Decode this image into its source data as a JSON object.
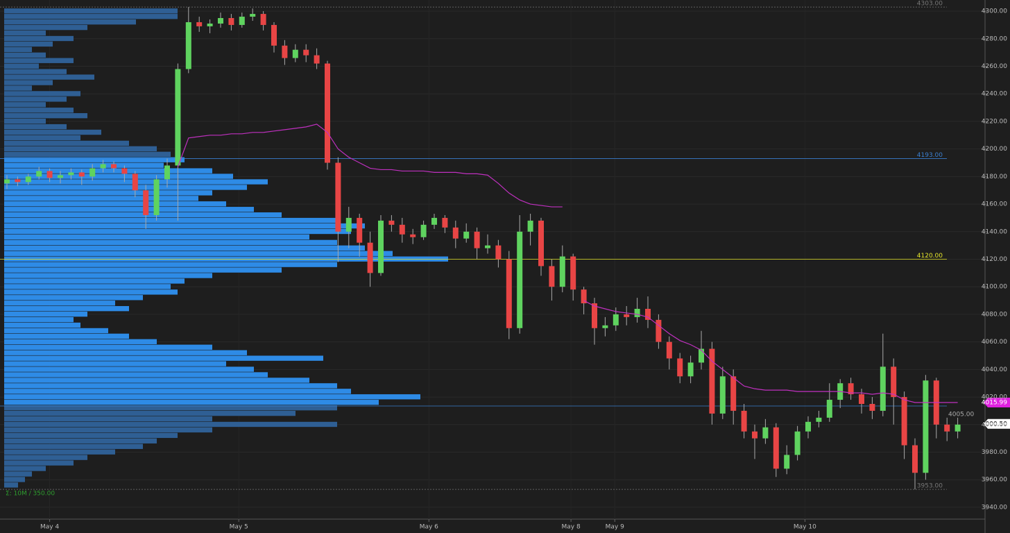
{
  "chart_data": {
    "type": "candlestick",
    "ylim": [
      3931.4,
      4308.1
    ],
    "yticks": [
      {
        "value": 4300,
        "label": "4300.00"
      },
      {
        "value": 4280,
        "label": "4280.00"
      },
      {
        "value": 4260,
        "label": "4260.00"
      },
      {
        "value": 4240,
        "label": "4240.00"
      },
      {
        "value": 4220,
        "label": "4220.00"
      },
      {
        "value": 4200,
        "label": "4200.00"
      },
      {
        "value": 4180,
        "label": "4180.00"
      },
      {
        "value": 4160,
        "label": "4160.00"
      },
      {
        "value": 4140,
        "label": "4140.00"
      },
      {
        "value": 4120,
        "label": "4120.00"
      },
      {
        "value": 4100,
        "label": "4100.00"
      },
      {
        "value": 4080,
        "label": "4080.00"
      },
      {
        "value": 4060,
        "label": "4060.00"
      },
      {
        "value": 4040,
        "label": "4040.00"
      },
      {
        "value": 4020,
        "label": "4020.00"
      },
      {
        "value": 4000,
        "label": "4000.00"
      },
      {
        "value": 3980,
        "label": "3980.00"
      },
      {
        "value": 3960,
        "label": "3960.00"
      },
      {
        "value": 3940,
        "label": "3940.00"
      }
    ],
    "xticks": [
      {
        "value": 4.0,
        "label": "May 4"
      },
      {
        "value": 21.7,
        "label": "May 5"
      },
      {
        "value": 39.5,
        "label": "May 6"
      },
      {
        "value": 52.8,
        "label": "May 8"
      },
      {
        "value": 56.9,
        "label": "May 9"
      },
      {
        "value": 74.7,
        "label": "May 10"
      }
    ],
    "up_color": "#5fd35f",
    "down_color": "#e84545",
    "candles": [
      [
        4175,
        4181,
        4171,
        4178
      ],
      [
        4178,
        4180,
        4173,
        4176
      ],
      [
        4176,
        4182,
        4174,
        4180
      ],
      [
        4180,
        4187,
        4178,
        4184
      ],
      [
        4184,
        4186,
        4176,
        4179
      ],
      [
        4179,
        4184,
        4175,
        4181
      ],
      [
        4181,
        4186,
        4178,
        4183
      ],
      [
        4183,
        4185,
        4174,
        4180
      ],
      [
        4180,
        4189,
        4177,
        4186
      ],
      [
        4186,
        4192,
        4183,
        4189
      ],
      [
        4189,
        4191,
        4183,
        4186
      ],
      [
        4186,
        4188,
        4176,
        4182
      ],
      [
        4182,
        4184,
        4165,
        4170
      ],
      [
        4170,
        4174,
        4142,
        4152
      ],
      [
        4152,
        4181,
        4148,
        4178
      ],
      [
        4178,
        4193,
        4172,
        4188
      ],
      [
        4188,
        4262,
        4148,
        4258
      ],
      [
        4258,
        4303,
        4255,
        4292
      ],
      [
        4292,
        4296,
        4285,
        4289
      ],
      [
        4289,
        4294,
        4284,
        4291
      ],
      [
        4291,
        4299,
        4288,
        4295
      ],
      [
        4295,
        4298,
        4286,
        4290
      ],
      [
        4290,
        4299,
        4288,
        4296
      ],
      [
        4296,
        4302,
        4293,
        4298
      ],
      [
        4298,
        4300,
        4286,
        4290
      ],
      [
        4290,
        4292,
        4270,
        4275
      ],
      [
        4275,
        4279,
        4261,
        4266
      ],
      [
        4266,
        4276,
        4263,
        4272
      ],
      [
        4272,
        4276,
        4263,
        4268
      ],
      [
        4268,
        4273,
        4258,
        4262
      ],
      [
        4262,
        4264,
        4185,
        4190
      ],
      [
        4190,
        4194,
        4118,
        4140
      ],
      [
        4140,
        4158,
        4128,
        4150
      ],
      [
        4150,
        4153,
        4122,
        4132
      ],
      [
        4132,
        4140,
        4100,
        4110
      ],
      [
        4110,
        4152,
        4108,
        4148
      ],
      [
        4148,
        4152,
        4140,
        4145
      ],
      [
        4145,
        4150,
        4132,
        4138
      ],
      [
        4138,
        4142,
        4131,
        4136
      ],
      [
        4136,
        4148,
        4134,
        4145
      ],
      [
        4145,
        4153,
        4142,
        4150
      ],
      [
        4150,
        4152,
        4139,
        4143
      ],
      [
        4143,
        4148,
        4128,
        4135
      ],
      [
        4135,
        4146,
        4132,
        4140
      ],
      [
        4140,
        4143,
        4120,
        4128
      ],
      [
        4128,
        4138,
        4124,
        4130
      ],
      [
        4130,
        4134,
        4114,
        4120
      ],
      [
        4120,
        4126,
        4062,
        4070
      ],
      [
        4070,
        4152,
        4066,
        4140
      ],
      [
        4140,
        4153,
        4130,
        4148
      ],
      [
        4148,
        4150,
        4108,
        4115
      ],
      [
        4115,
        4120,
        4090,
        4100
      ],
      [
        4100,
        4130,
        4096,
        4122
      ],
      [
        4122,
        4124,
        4090,
        4098
      ],
      [
        4098,
        4100,
        4080,
        4088
      ],
      [
        4088,
        4092,
        4058,
        4070
      ],
      [
        4070,
        4078,
        4064,
        4072
      ],
      [
        4072,
        4085,
        4068,
        4080
      ],
      [
        4080,
        4086,
        4072,
        4078
      ],
      [
        4078,
        4092,
        4074,
        4084
      ],
      [
        4084,
        4093,
        4070,
        4076
      ],
      [
        4076,
        4080,
        4055,
        4060
      ],
      [
        4060,
        4064,
        4040,
        4048
      ],
      [
        4048,
        4052,
        4030,
        4035
      ],
      [
        4035,
        4050,
        4030,
        4045
      ],
      [
        4045,
        4068,
        4040,
        4055
      ],
      [
        4055,
        4060,
        4000,
        4008
      ],
      [
        4008,
        4042,
        4004,
        4035
      ],
      [
        4035,
        4040,
        4000,
        4010
      ],
      [
        4010,
        4015,
        3990,
        3995
      ],
      [
        3995,
        4000,
        3975,
        3990
      ],
      [
        3990,
        4004,
        3986,
        3998
      ],
      [
        3998,
        4001,
        3962,
        3968
      ],
      [
        3968,
        3985,
        3964,
        3978
      ],
      [
        3978,
        3999,
        3974,
        3995
      ],
      [
        3995,
        4006,
        3990,
        4002
      ],
      [
        4002,
        4010,
        3998,
        4005
      ],
      [
        4005,
        4030,
        4002,
        4018
      ],
      [
        4018,
        4033,
        4012,
        4030
      ],
      [
        4030,
        4034,
        4018,
        4022
      ],
      [
        4022,
        4026,
        4008,
        4015
      ],
      [
        4015,
        4020,
        4004,
        4010
      ],
      [
        4010,
        4066,
        4006,
        4042
      ],
      [
        4042,
        4048,
        4000,
        4020
      ],
      [
        4020,
        4024,
        3975,
        3985
      ],
      [
        3985,
        3990,
        3953,
        3965
      ],
      [
        3965,
        4036,
        3960,
        4032
      ],
      [
        4032,
        4034,
        3990,
        4000
      ],
      [
        4000,
        4005,
        3988,
        3995
      ],
      [
        3995,
        4005,
        3990,
        4000
      ]
    ],
    "vwap": {
      "color": "#c030c0",
      "values": [
        null,
        null,
        null,
        null,
        null,
        null,
        null,
        null,
        null,
        null,
        null,
        null,
        null,
        null,
        null,
        null,
        4187,
        4208,
        4209,
        4210,
        4210,
        4211,
        4211,
        4212,
        4212,
        4213,
        4214,
        4215,
        4216,
        4218,
        4212,
        4200,
        4194,
        4190,
        4186,
        4185,
        4185,
        4184,
        4184,
        4184,
        4183,
        4183,
        4183,
        4182,
        4182,
        4181,
        4175,
        4168,
        4163,
        4160,
        4159,
        4158,
        4158,
        null,
        4090,
        4086,
        4084,
        4082,
        4081,
        4080,
        4078,
        4072,
        4066,
        4061,
        4058,
        4054,
        4046,
        4040,
        4034,
        4028,
        4026,
        4025,
        4025,
        4025,
        4024,
        4024,
        4024,
        4024,
        4024,
        4023,
        4023,
        4022,
        4023,
        4022,
        4018,
        4016,
        4016,
        4016,
        4016,
        4016
      ]
    },
    "levels": [
      {
        "value": 4303,
        "label": "4303.00",
        "color": "#777777"
      },
      {
        "value": 4193,
        "label": "4193.00",
        "color": "#3a7fd0"
      },
      {
        "value": 4120,
        "label": "4120.00",
        "color": "#e6e62a"
      },
      {
        "value": 4013.5,
        "color": "#3a7fd0"
      },
      {
        "value": 3953,
        "label": "3953.00",
        "color": "#777777"
      }
    ],
    "badges": [
      {
        "value": 4015.99,
        "label": "4015.99",
        "color": "#e020e0"
      },
      {
        "value": 4000.5,
        "label": "4000.50",
        "color": "#ffffff"
      }
    ],
    "annotations": [
      "4005.00",
      "Σ: 10M / 350.00"
    ],
    "profile": {
      "value_area_color": "#2e8be6",
      "outside_color": "#2f5f94",
      "prices": [
        4300,
        4296,
        4292,
        4288,
        4284,
        4280,
        4276,
        4272,
        4268,
        4264,
        4260,
        4256,
        4252,
        4248,
        4244,
        4240,
        4236,
        4232,
        4228,
        4224,
        4220,
        4216,
        4212,
        4208,
        4204,
        4200,
        4196,
        4192,
        4188,
        4184,
        4180,
        4176,
        4172,
        4168,
        4164,
        4160,
        4156,
        4152,
        4148,
        4144,
        4140,
        4136,
        4132,
        4128,
        4124,
        4120,
        4116,
        4112,
        4108,
        4104,
        4100,
        4096,
        4092,
        4088,
        4084,
        4080,
        4076,
        4072,
        4068,
        4064,
        4060,
        4056,
        4052,
        4048,
        4044,
        4040,
        4036,
        4032,
        4028,
        4024,
        4020,
        4016,
        4012,
        4008,
        4004,
        4000,
        3996,
        3992,
        3988,
        3984,
        3980,
        3976,
        3972,
        3968,
        3964,
        3960,
        3956
      ],
      "volumes": [
        250,
        250,
        190,
        120,
        60,
        100,
        70,
        40,
        60,
        100,
        50,
        90,
        130,
        70,
        40,
        110,
        90,
        60,
        100,
        120,
        60,
        90,
        140,
        110,
        180,
        220,
        240,
        260,
        230,
        300,
        330,
        380,
        350,
        300,
        280,
        320,
        360,
        400,
        480,
        520,
        500,
        440,
        480,
        520,
        560,
        640,
        480,
        400,
        300,
        260,
        240,
        250,
        200,
        160,
        180,
        120,
        100,
        110,
        150,
        180,
        220,
        300,
        350,
        460,
        320,
        360,
        380,
        440,
        480,
        500,
        600,
        540,
        480,
        420,
        300,
        480,
        300,
        250,
        220,
        200,
        160,
        120,
        100,
        60,
        40,
        30,
        20
      ]
    }
  }
}
